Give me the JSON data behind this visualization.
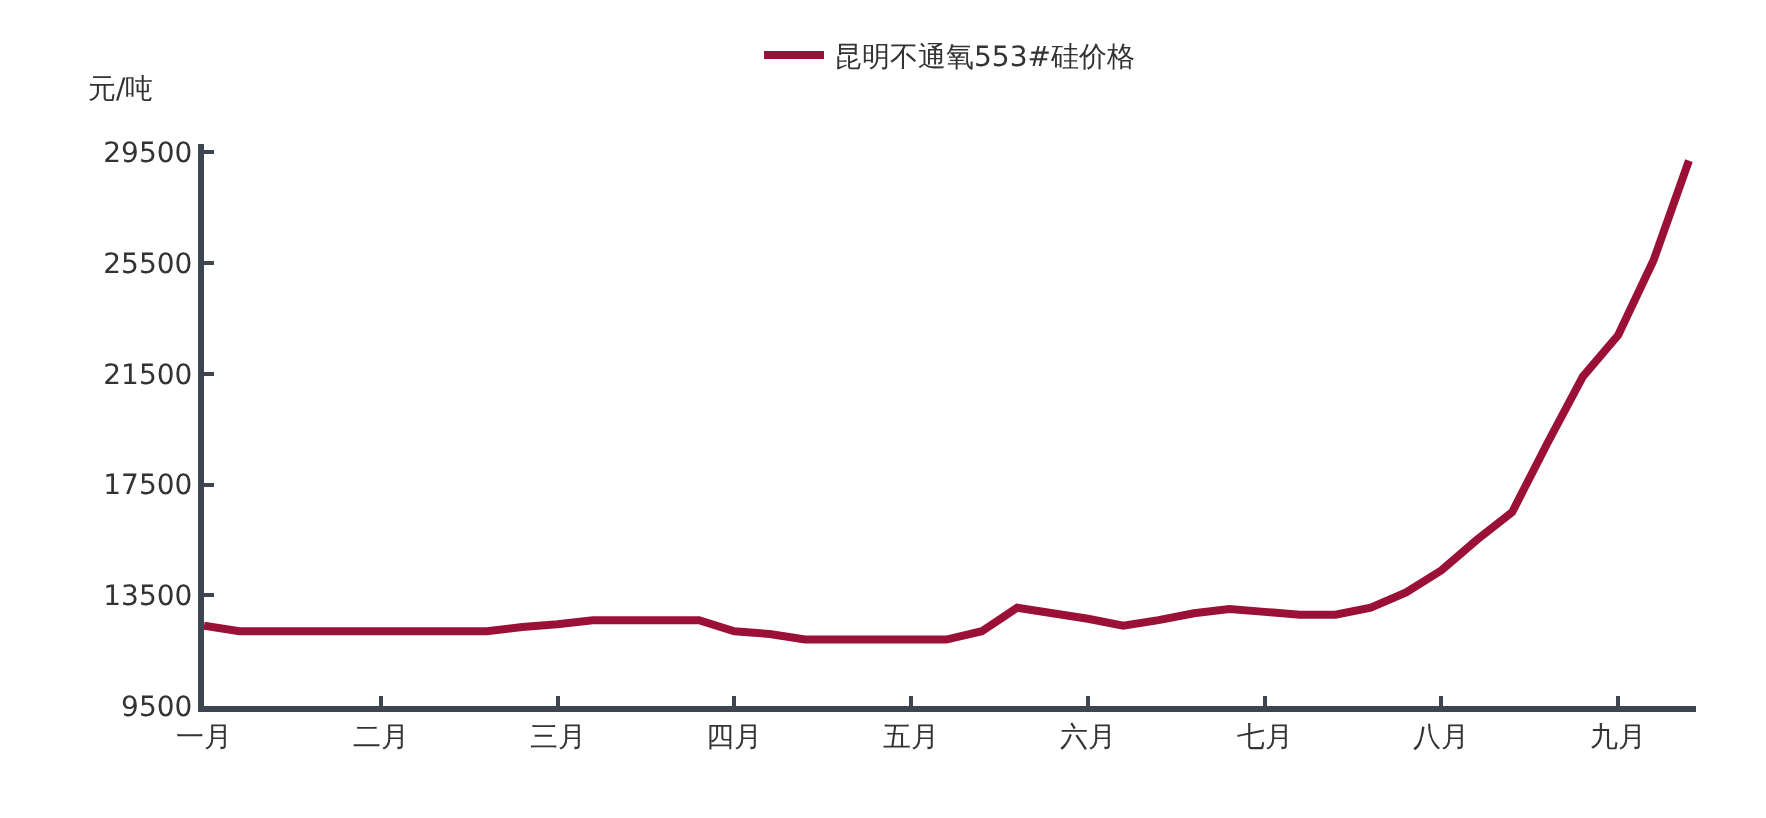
{
  "chart_data": {
    "type": "line",
    "ylabel": "元/吨",
    "categories": [
      "一月",
      null,
      null,
      null,
      null,
      "二月",
      null,
      null,
      null,
      null,
      "三月",
      null,
      null,
      null,
      null,
      "四月",
      null,
      null,
      null,
      null,
      "五月",
      null,
      null,
      null,
      null,
      "六月",
      null,
      null,
      null,
      null,
      "七月",
      null,
      null,
      null,
      null,
      "八月",
      null,
      null,
      null,
      null,
      "九月",
      null,
      null
    ],
    "series": [
      {
        "name": "昆明不通氧553#硅价格",
        "color": "#9b1036",
        "values": [
          12400,
          12200,
          12200,
          12200,
          12200,
          12200,
          12200,
          12200,
          12200,
          12350,
          12450,
          12600,
          12600,
          12600,
          12600,
          12200,
          12100,
          11900,
          11900,
          11900,
          11900,
          11900,
          12200,
          13050,
          12850,
          12650,
          12400,
          12600,
          12850,
          13000,
          12900,
          12800,
          12800,
          13050,
          13600,
          14400,
          15500,
          16500,
          19000,
          21400,
          22900,
          25600,
          29200
        ]
      }
    ],
    "ylim": [
      9500,
      29800
    ],
    "yticks": [
      9500,
      13500,
      17500,
      21500,
      25500,
      29500
    ],
    "legend": "top",
    "marker": "none",
    "line_style": "solid"
  }
}
